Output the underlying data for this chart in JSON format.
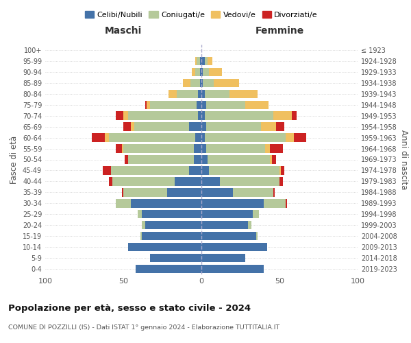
{
  "age_groups": [
    "0-4",
    "5-9",
    "10-14",
    "15-19",
    "20-24",
    "25-29",
    "30-34",
    "35-39",
    "40-44",
    "45-49",
    "50-54",
    "55-59",
    "60-64",
    "65-69",
    "70-74",
    "75-79",
    "80-84",
    "85-89",
    "90-94",
    "95-99",
    "100+"
  ],
  "birth_years": [
    "2019-2023",
    "2014-2018",
    "2009-2013",
    "2004-2008",
    "1999-2003",
    "1994-1998",
    "1989-1993",
    "1984-1988",
    "1979-1983",
    "1974-1978",
    "1969-1973",
    "1964-1968",
    "1959-1963",
    "1954-1958",
    "1949-1953",
    "1944-1948",
    "1939-1943",
    "1934-1938",
    "1929-1933",
    "1924-1928",
    "≤ 1923"
  ],
  "maschi": {
    "celibi": [
      42,
      33,
      47,
      38,
      36,
      38,
      45,
      22,
      17,
      8,
      5,
      5,
      4,
      8,
      2,
      3,
      2,
      1,
      1,
      1,
      0
    ],
    "coniugati": [
      0,
      0,
      0,
      1,
      2,
      3,
      10,
      28,
      40,
      50,
      42,
      45,
      55,
      35,
      45,
      30,
      14,
      6,
      3,
      2,
      0
    ],
    "vedovi": [
      0,
      0,
      0,
      0,
      0,
      0,
      0,
      0,
      0,
      0,
      0,
      1,
      3,
      2,
      3,
      2,
      5,
      5,
      2,
      1,
      0
    ],
    "divorziati": [
      0,
      0,
      0,
      0,
      0,
      0,
      0,
      1,
      2,
      5,
      2,
      4,
      8,
      5,
      5,
      1,
      0,
      0,
      0,
      0,
      0
    ]
  },
  "femmine": {
    "nubili": [
      40,
      28,
      42,
      35,
      30,
      33,
      40,
      20,
      12,
      5,
      4,
      3,
      2,
      3,
      2,
      3,
      2,
      1,
      1,
      2,
      0
    ],
    "coniugate": [
      0,
      0,
      0,
      1,
      2,
      4,
      14,
      26,
      38,
      45,
      40,
      38,
      52,
      35,
      44,
      25,
      16,
      7,
      4,
      2,
      0
    ],
    "vedove": [
      0,
      0,
      0,
      0,
      0,
      0,
      0,
      0,
      0,
      1,
      1,
      3,
      5,
      10,
      12,
      15,
      18,
      16,
      8,
      3,
      0
    ],
    "divorziate": [
      0,
      0,
      0,
      0,
      0,
      0,
      1,
      1,
      2,
      2,
      3,
      8,
      8,
      5,
      3,
      0,
      0,
      0,
      0,
      0,
      0
    ]
  },
  "colors": {
    "celibi": "#4472a8",
    "coniugati": "#b5c99a",
    "vedovi": "#f0c060",
    "divorziati": "#cc2222"
  },
  "title": "Popolazione per età, sesso e stato civile - 2024",
  "subtitle": "COMUNE DI POZZILLI (IS) - Dati ISTAT 1° gennaio 2024 - Elaborazione TUTTITALIA.IT",
  "xlabel_maschi": "Maschi",
  "xlabel_femmine": "Femmine",
  "ylabel": "Fasce di età",
  "ylabel_right": "Anni di nascita",
  "xlim": 100,
  "background_color": "#ffffff",
  "grid_color": "#cccccc"
}
